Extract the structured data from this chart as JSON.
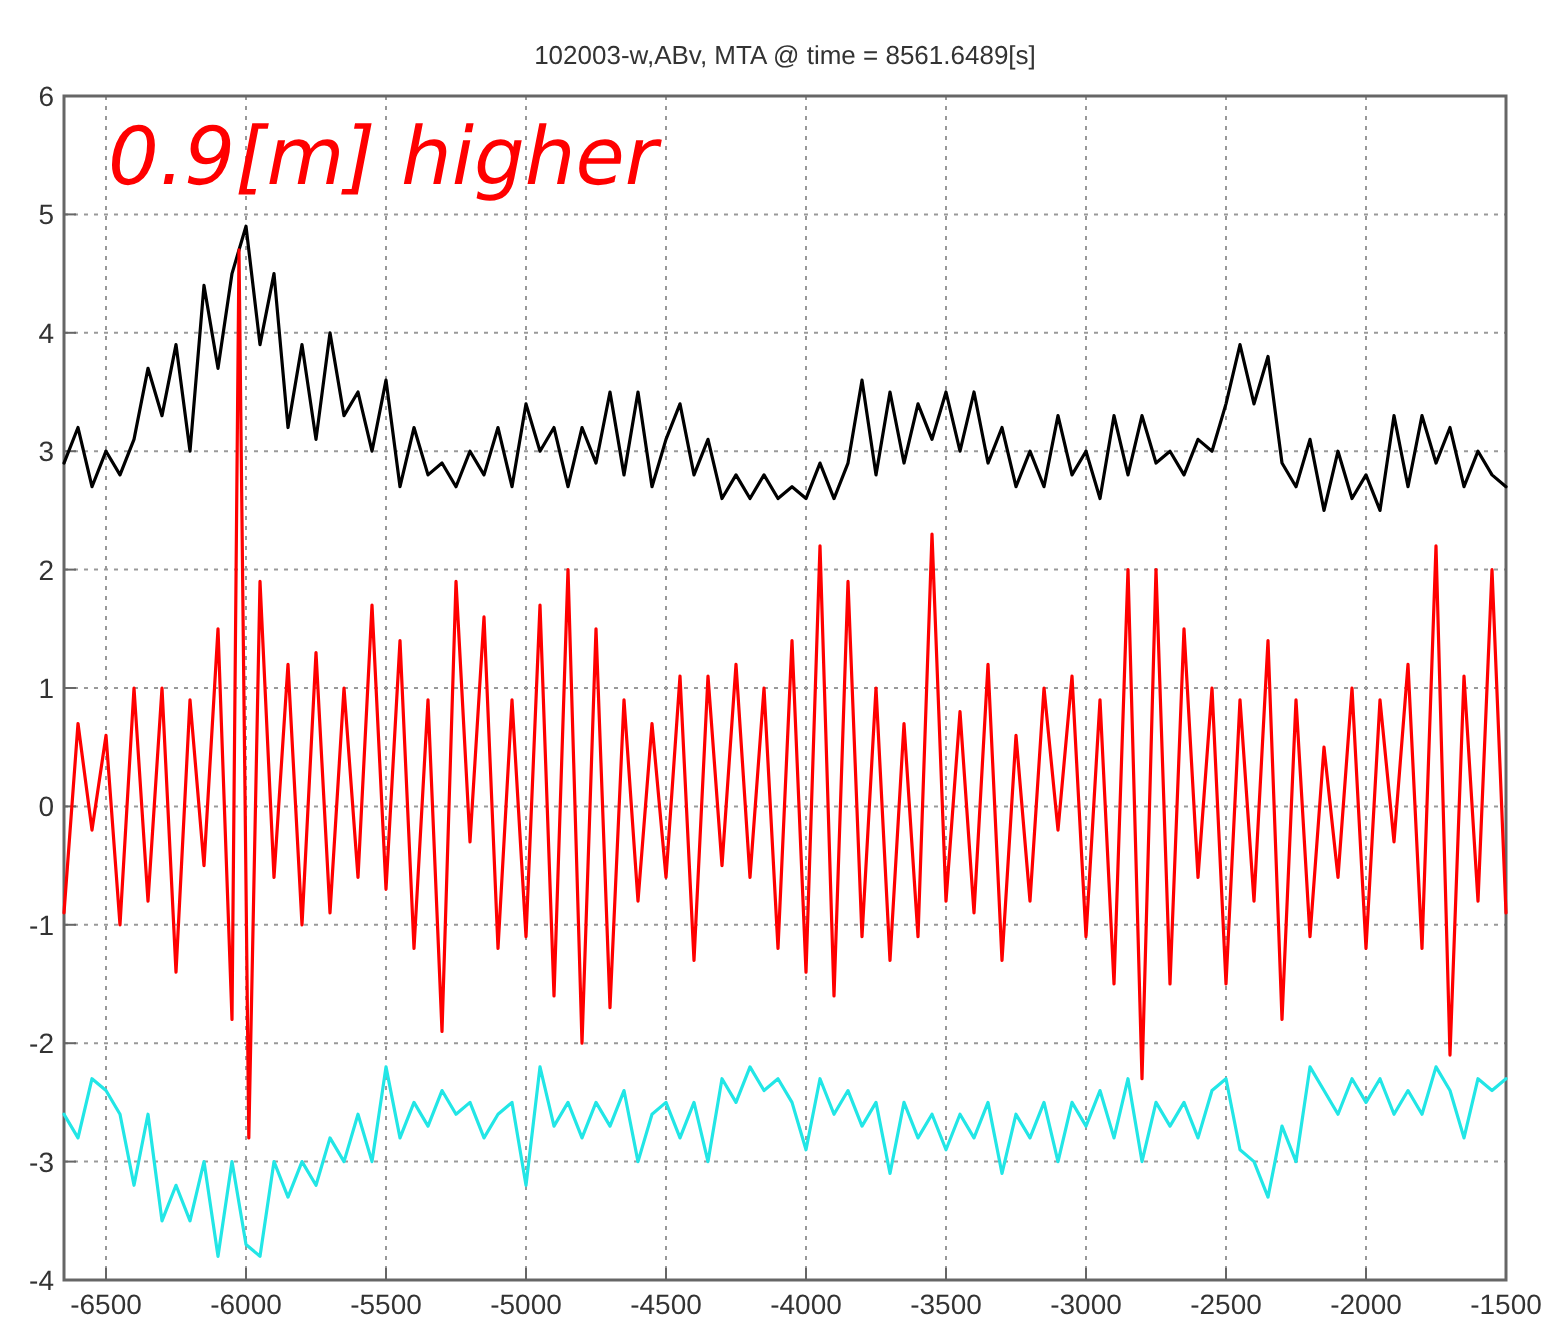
{
  "chart_data": {
    "type": "line",
    "title": "102003-w,ABv, MTA @ time = 8561.6489[s]",
    "annotations": [
      "0.9[m] higher"
    ],
    "xlim": [
      -6650,
      -1500
    ],
    "ylim": [
      -4,
      6
    ],
    "xticks": [
      -6500,
      -6000,
      -5500,
      -5000,
      -4500,
      -4000,
      -3500,
      -3000,
      -2500,
      -2000,
      -1500
    ],
    "yticks": [
      -4,
      -3,
      -2,
      -1,
      0,
      1,
      2,
      3,
      4,
      5,
      6
    ],
    "grid": true,
    "line_style": "solid",
    "marker": "none",
    "series": [
      {
        "color": "#000000",
        "x": [
          -6650,
          -6600,
          -6550,
          -6500,
          -6450,
          -6400,
          -6350,
          -6300,
          -6250,
          -6200,
          -6150,
          -6100,
          -6050,
          -6000,
          -5950,
          -5900,
          -5850,
          -5800,
          -5750,
          -5700,
          -5650,
          -5600,
          -5550,
          -5500,
          -5450,
          -5400,
          -5350,
          -5300,
          -5250,
          -5200,
          -5150,
          -5100,
          -5050,
          -5000,
          -4950,
          -4900,
          -4850,
          -4800,
          -4750,
          -4700,
          -4650,
          -4600,
          -4550,
          -4500,
          -4450,
          -4400,
          -4350,
          -4300,
          -4250,
          -4200,
          -4150,
          -4100,
          -4050,
          -4000,
          -3950,
          -3900,
          -3850,
          -3800,
          -3750,
          -3700,
          -3650,
          -3600,
          -3550,
          -3500,
          -3450,
          -3400,
          -3350,
          -3300,
          -3250,
          -3200,
          -3150,
          -3100,
          -3050,
          -3000,
          -2950,
          -2900,
          -2850,
          -2800,
          -2750,
          -2700,
          -2650,
          -2600,
          -2550,
          -2500,
          -2450,
          -2400,
          -2350,
          -2300,
          -2250,
          -2200,
          -2150,
          -2100,
          -2050,
          -2000,
          -1950,
          -1900,
          -1850,
          -1800,
          -1750,
          -1700,
          -1650,
          -1600,
          -1550,
          -1500
        ],
        "values": [
          2.9,
          3.2,
          2.7,
          3.0,
          2.8,
          3.1,
          3.7,
          3.3,
          3.9,
          3.0,
          4.4,
          3.7,
          4.5,
          4.9,
          3.9,
          4.5,
          3.2,
          3.9,
          3.1,
          4.0,
          3.3,
          3.5,
          3.0,
          3.6,
          2.7,
          3.2,
          2.8,
          2.9,
          2.7,
          3.0,
          2.8,
          3.2,
          2.7,
          3.4,
          3.0,
          3.2,
          2.7,
          3.2,
          2.9,
          3.5,
          2.8,
          3.5,
          2.7,
          3.1,
          3.4,
          2.8,
          3.1,
          2.6,
          2.8,
          2.6,
          2.8,
          2.6,
          2.7,
          2.6,
          2.9,
          2.6,
          2.9,
          3.6,
          2.8,
          3.5,
          2.9,
          3.4,
          3.1,
          3.5,
          3.0,
          3.5,
          2.9,
          3.2,
          2.7,
          3.0,
          2.7,
          3.3,
          2.8,
          3.0,
          2.6,
          3.3,
          2.8,
          3.3,
          2.9,
          3.0,
          2.8,
          3.1,
          3.0,
          3.4,
          3.9,
          3.4,
          3.8,
          2.9,
          2.7,
          3.1,
          2.5,
          3.0,
          2.6,
          2.8,
          2.5,
          3.3,
          2.7,
          3.3,
          2.9,
          3.2,
          2.7,
          3.0,
          2.8,
          2.7
        ]
      },
      {
        "color": "#ff0000",
        "x": [
          -6650,
          -6600,
          -6550,
          -6500,
          -6450,
          -6400,
          -6350,
          -6300,
          -6250,
          -6200,
          -6150,
          -6100,
          -6050,
          -6025,
          -5990,
          -5950,
          -5900,
          -5850,
          -5800,
          -5750,
          -5700,
          -5650,
          -5600,
          -5550,
          -5500,
          -5450,
          -5400,
          -5350,
          -5300,
          -5250,
          -5200,
          -5150,
          -5100,
          -5050,
          -5000,
          -4950,
          -4900,
          -4850,
          -4800,
          -4750,
          -4700,
          -4650,
          -4600,
          -4550,
          -4500,
          -4450,
          -4400,
          -4350,
          -4300,
          -4250,
          -4200,
          -4150,
          -4100,
          -4050,
          -4000,
          -3950,
          -3900,
          -3850,
          -3800,
          -3750,
          -3700,
          -3650,
          -3600,
          -3550,
          -3500,
          -3450,
          -3400,
          -3350,
          -3300,
          -3250,
          -3200,
          -3150,
          -3100,
          -3050,
          -3000,
          -2950,
          -2900,
          -2850,
          -2800,
          -2750,
          -2700,
          -2650,
          -2600,
          -2550,
          -2500,
          -2450,
          -2400,
          -2350,
          -2300,
          -2250,
          -2200,
          -2150,
          -2100,
          -2050,
          -2000,
          -1950,
          -1900,
          -1850,
          -1800,
          -1750,
          -1700,
          -1650,
          -1600,
          -1550,
          -1500
        ],
        "values": [
          -0.9,
          0.7,
          -0.2,
          0.6,
          -1.0,
          1.0,
          -0.8,
          1.0,
          -1.4,
          0.9,
          -0.5,
          1.5,
          -1.8,
          4.7,
          -2.8,
          1.9,
          -0.6,
          1.2,
          -1.0,
          1.3,
          -0.9,
          1.0,
          -0.6,
          1.7,
          -0.7,
          1.4,
          -1.2,
          0.9,
          -1.9,
          1.9,
          -0.3,
          1.6,
          -1.2,
          0.9,
          -1.1,
          1.7,
          -1.6,
          2.0,
          -2.0,
          1.5,
          -1.7,
          0.9,
          -0.8,
          0.7,
          -0.6,
          1.1,
          -1.3,
          1.1,
          -0.5,
          1.2,
          -0.6,
          1.0,
          -1.2,
          1.4,
          -1.4,
          2.2,
          -1.6,
          1.9,
          -1.1,
          1.0,
          -1.3,
          0.7,
          -1.1,
          2.3,
          -0.8,
          0.8,
          -0.9,
          1.2,
          -1.3,
          0.6,
          -0.8,
          1.0,
          -0.2,
          1.1,
          -1.1,
          0.9,
          -1.5,
          2.0,
          -2.3,
          2.0,
          -1.5,
          1.5,
          -0.6,
          1.0,
          -1.5,
          0.9,
          -0.8,
          1.4,
          -1.8,
          0.9,
          -1.1,
          0.5,
          -0.6,
          1.0,
          -1.2,
          0.9,
          -0.3,
          1.2,
          -1.2,
          2.2,
          -2.1,
          1.1,
          -0.8,
          2.0,
          -0.9
        ]
      },
      {
        "color": "#22e6e6",
        "x": [
          -6650,
          -6600,
          -6550,
          -6500,
          -6450,
          -6400,
          -6350,
          -6300,
          -6250,
          -6200,
          -6150,
          -6100,
          -6050,
          -6000,
          -5950,
          -5900,
          -5850,
          -5800,
          -5750,
          -5700,
          -5650,
          -5600,
          -5550,
          -5500,
          -5450,
          -5400,
          -5350,
          -5300,
          -5250,
          -5200,
          -5150,
          -5100,
          -5050,
          -5000,
          -4950,
          -4900,
          -4850,
          -4800,
          -4750,
          -4700,
          -4650,
          -4600,
          -4550,
          -4500,
          -4450,
          -4400,
          -4350,
          -4300,
          -4250,
          -4200,
          -4150,
          -4100,
          -4050,
          -4000,
          -3950,
          -3900,
          -3850,
          -3800,
          -3750,
          -3700,
          -3650,
          -3600,
          -3550,
          -3500,
          -3450,
          -3400,
          -3350,
          -3300,
          -3250,
          -3200,
          -3150,
          -3100,
          -3050,
          -3000,
          -2950,
          -2900,
          -2850,
          -2800,
          -2750,
          -2700,
          -2650,
          -2600,
          -2550,
          -2500,
          -2450,
          -2400,
          -2350,
          -2300,
          -2250,
          -2200,
          -2150,
          -2100,
          -2050,
          -2000,
          -1950,
          -1900,
          -1850,
          -1800,
          -1750,
          -1700,
          -1650,
          -1600,
          -1550,
          -1500
        ],
        "values": [
          -2.6,
          -2.8,
          -2.3,
          -2.4,
          -2.6,
          -3.2,
          -2.6,
          -3.5,
          -3.2,
          -3.5,
          -3.0,
          -3.8,
          -3.0,
          -3.7,
          -3.8,
          -3.0,
          -3.3,
          -3.0,
          -3.2,
          -2.8,
          -3.0,
          -2.6,
          -3.0,
          -2.2,
          -2.8,
          -2.5,
          -2.7,
          -2.4,
          -2.6,
          -2.5,
          -2.8,
          -2.6,
          -2.5,
          -3.2,
          -2.2,
          -2.7,
          -2.5,
          -2.8,
          -2.5,
          -2.7,
          -2.4,
          -3.0,
          -2.6,
          -2.5,
          -2.8,
          -2.5,
          -3.0,
          -2.3,
          -2.5,
          -2.2,
          -2.4,
          -2.3,
          -2.5,
          -2.9,
          -2.3,
          -2.6,
          -2.4,
          -2.7,
          -2.5,
          -3.1,
          -2.5,
          -2.8,
          -2.6,
          -2.9,
          -2.6,
          -2.8,
          -2.5,
          -3.1,
          -2.6,
          -2.8,
          -2.5,
          -3.0,
          -2.5,
          -2.7,
          -2.4,
          -2.8,
          -2.3,
          -3.0,
          -2.5,
          -2.7,
          -2.5,
          -2.8,
          -2.4,
          -2.3,
          -2.9,
          -3.0,
          -3.3,
          -2.7,
          -3.0,
          -2.2,
          -2.4,
          -2.6,
          -2.3,
          -2.5,
          -2.3,
          -2.6,
          -2.4,
          -2.6,
          -2.2,
          -2.4,
          -2.8,
          -2.3,
          -2.4,
          -2.3
        ]
      }
    ]
  }
}
